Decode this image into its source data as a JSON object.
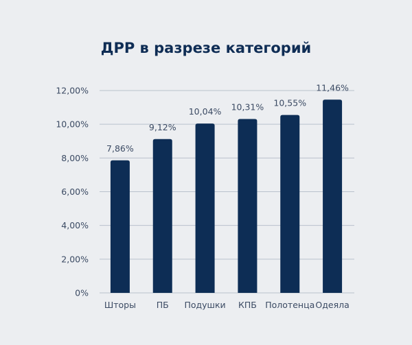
{
  "chart_data": {
    "type": "bar",
    "title": "ДРР в разрезе категорий",
    "categories": [
      "Шторы",
      "ПБ",
      "Подушки",
      "КПБ",
      "Полотенца",
      "Одеяла"
    ],
    "values": [
      7.86,
      9.12,
      10.04,
      10.31,
      10.55,
      11.46
    ],
    "data_labels": [
      "7,86%",
      "9,12%",
      "10,04%",
      "10,31%",
      "10,55%",
      "11,46%"
    ],
    "yticks": [
      "0%",
      "2,00%",
      "4,00%",
      "6,00%",
      "8,00%",
      "10,00%",
      "12,00%"
    ],
    "ylim": [
      0,
      12
    ],
    "grid": true,
    "xlabel": "",
    "ylabel": "",
    "colors": {
      "bar": "#0d2d55",
      "grid": "#b9c1cc",
      "background": "#eceef1"
    }
  }
}
